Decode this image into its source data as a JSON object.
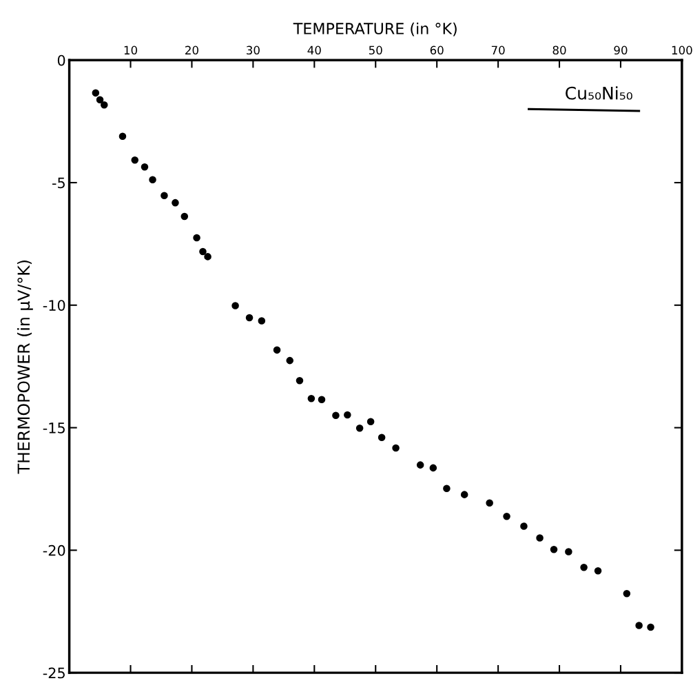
{
  "chart_data": {
    "type": "scatter",
    "xlabel": "TEMPERATURE (in °K)",
    "ylabel": "THERMOPOWER (in μV/°K)",
    "annotations": [
      "Cu₅₀Ni₅₀"
    ],
    "xlim": [
      0,
      100
    ],
    "xticks": [
      {
        "value": 0,
        "label": null
      },
      10,
      20,
      30,
      40,
      50,
      60,
      70,
      80,
      90,
      100
    ],
    "ylim": [
      -25,
      0
    ],
    "yticks": [
      0,
      -5,
      -10,
      -15,
      -20,
      -25
    ],
    "grid": false,
    "legend": false,
    "marker": "circle",
    "series": [
      {
        "color": "#000000",
        "x": [
          5.0,
          5.7,
          8.7,
          12.3,
          13.6,
          15.5,
          18.8,
          20.8,
          27.1,
          29.4,
          31.4,
          36.0,
          39.5,
          41.2,
          43.5,
          45.4,
          51.0,
          53.3,
          57.3,
          68.6,
          71.4,
          79.1,
          84.0,
          86.3,
          91.0,
          93.0
        ],
        "values": [
          -1.62,
          -1.83,
          -3.11,
          -4.36,
          -4.88,
          -5.53,
          -6.38,
          -7.25,
          -10.02,
          -10.51,
          -10.64,
          -12.26,
          -13.81,
          -13.85,
          -14.5,
          -14.48,
          -15.4,
          -15.83,
          -16.52,
          -18.07,
          -18.62,
          -19.97,
          -20.7,
          -20.84,
          -21.77,
          -23.07
        ]
      },
      {
        "color": "#000000",
        "x": [
          4.3,
          10.7,
          17.3,
          21.8,
          22.6,
          33.9,
          37.6,
          47.4,
          49.2,
          59.4,
          61.6,
          64.5,
          74.2,
          76.8,
          81.5,
          94.9
        ],
        "values": [
          -1.34,
          -4.08,
          -5.82,
          -7.81,
          -8.02,
          -11.83,
          -13.08,
          -15.02,
          -14.75,
          -16.64,
          -17.48,
          -17.73,
          -19.02,
          -19.5,
          -20.06,
          -23.14
        ]
      }
    ]
  }
}
